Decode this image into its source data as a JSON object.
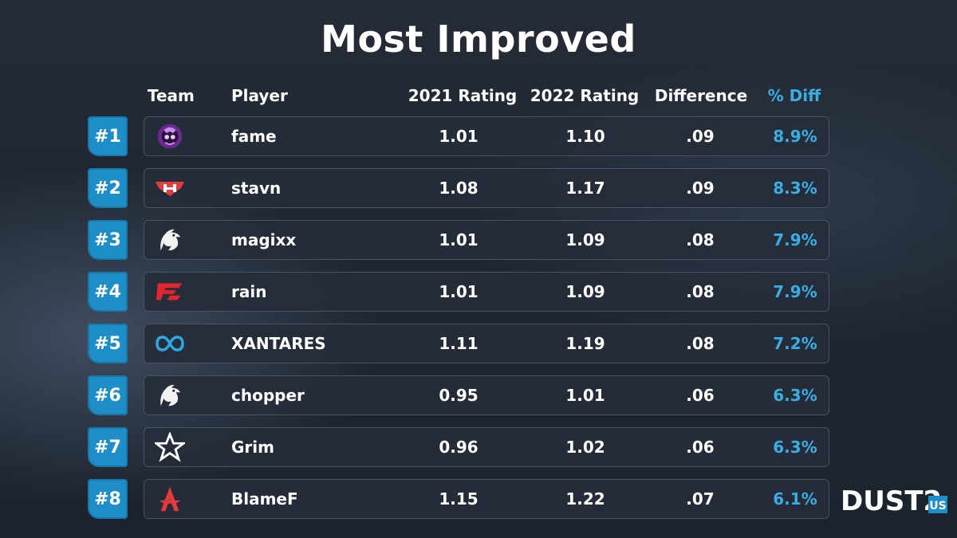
{
  "title": "Most Improved",
  "headers": {
    "team": "Team",
    "player": "Player",
    "rating_2021": "2021 Rating",
    "rating_2022": "2022 Rating",
    "difference": "Difference",
    "pct_diff": "% Diff"
  },
  "rows": [
    {
      "rank": "#1",
      "team_icon": "purple-skull-logo",
      "player": "fame",
      "r2021": "1.01",
      "r2022": "1.10",
      "diff": ".09",
      "pct": "8.9%"
    },
    {
      "rank": "#2",
      "team_icon": "heroic-logo",
      "player": "stavn",
      "r2021": "1.08",
      "r2022": "1.17",
      "diff": ".09",
      "pct": "8.3%"
    },
    {
      "rank": "#3",
      "team_icon": "spirit-dragon-logo",
      "player": "magixx",
      "r2021": "1.01",
      "r2022": "1.09",
      "diff": ".08",
      "pct": "7.9%"
    },
    {
      "rank": "#4",
      "team_icon": "faze-logo",
      "player": "rain",
      "r2021": "1.01",
      "r2022": "1.09",
      "diff": ".08",
      "pct": "7.9%"
    },
    {
      "rank": "#5",
      "team_icon": "movistar-riders-logo",
      "player": "XANTARES",
      "r2021": "1.11",
      "r2022": "1.19",
      "diff": ".08",
      "pct": "7.2%"
    },
    {
      "rank": "#6",
      "team_icon": "spirit-dragon-logo",
      "player": "chopper",
      "r2021": "0.95",
      "r2022": "1.01",
      "diff": ".06",
      "pct": "6.3%"
    },
    {
      "rank": "#7",
      "team_icon": "complexity-star-logo",
      "player": "Grim",
      "r2021": "0.96",
      "r2022": "1.02",
      "diff": ".06",
      "pct": "6.3%"
    },
    {
      "rank": "#8",
      "team_icon": "astralis-logo",
      "player": "BlameF",
      "r2021": "1.15",
      "r2022": "1.22",
      "diff": ".07",
      "pct": "6.1%"
    }
  ],
  "brand": {
    "name": "DUST2",
    "suffix": "US"
  },
  "colors": {
    "accent": "#1d8ec8",
    "pct_text": "#3aaee3"
  }
}
